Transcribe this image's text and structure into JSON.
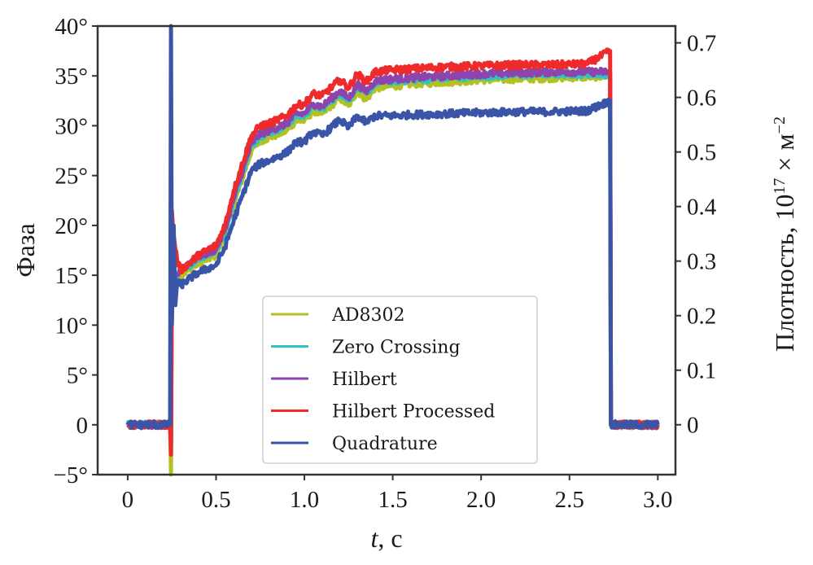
{
  "chart_data": {
    "type": "line",
    "title": "",
    "xlabel": "t, с",
    "xlabel_italic_part": "t",
    "xlabel_rest": ", с",
    "ylabel": "Фаза",
    "ylabel_right": "Плотность, 10^17 × м^-2",
    "ylabel_right_parts": {
      "base": "Плотность, 10",
      "exp": "17",
      "mid": " × м",
      "exp2": "−2"
    },
    "xlim": [
      -0.17,
      3.1
    ],
    "ylim": [
      -5,
      40
    ],
    "ylim_right": [
      -0.0914,
      0.7308
    ],
    "x_ticks": [
      0,
      0.5,
      1.0,
      1.5,
      2.0,
      2.5,
      3.0
    ],
    "x_tick_labels": [
      "0",
      "0.5",
      "1.0",
      "1.5",
      "2.0",
      "2.5",
      "3.0"
    ],
    "y_ticks": [
      -5,
      0,
      5,
      10,
      15,
      20,
      25,
      30,
      35,
      40
    ],
    "y_tick_labels": [
      "−5°",
      "0",
      "5°",
      "10°",
      "15°",
      "20°",
      "25°",
      "30°",
      "35°",
      "40°"
    ],
    "y_right_ticks": [
      0,
      0.1,
      0.2,
      0.3,
      0.4,
      0.5,
      0.6,
      0.7
    ],
    "y_right_tick_labels": [
      "0",
      "0.1",
      "0.2",
      "0.3",
      "0.4",
      "0.5",
      "0.6",
      "0.7"
    ],
    "grid": false,
    "legend_position": "lower-center",
    "noise_amplitude_deg": 0.35,
    "series": [
      {
        "name": "AD8302",
        "color": "#b5c123",
        "x": [
          0,
          0.24,
          0.245,
          0.25,
          0.28,
          0.3,
          0.4,
          0.5,
          0.55,
          0.6,
          0.7,
          0.75,
          0.8,
          0.9,
          0.95,
          1.0,
          1.05,
          1.1,
          1.15,
          1.2,
          1.25,
          1.3,
          1.35,
          1.4,
          1.5,
          1.6,
          1.8,
          2.0,
          2.2,
          2.4,
          2.6,
          2.73,
          2.735,
          2.75,
          3.0
        ],
        "y": [
          0,
          0,
          -5,
          14,
          14.3,
          15,
          16.2,
          17,
          19,
          22,
          27.5,
          28.5,
          28.8,
          29.5,
          30.5,
          30.5,
          31.5,
          31.2,
          32,
          32.8,
          32,
          33.5,
          32.6,
          33.8,
          34,
          34.2,
          34.4,
          34.6,
          34.7,
          34.8,
          34.9,
          35,
          0,
          0,
          0
        ]
      },
      {
        "name": "Zero Crossing",
        "color": "#2ec4c4",
        "x": [
          0,
          0.24,
          0.245,
          0.25,
          0.28,
          0.3,
          0.4,
          0.5,
          0.55,
          0.6,
          0.7,
          0.75,
          0.8,
          0.9,
          0.95,
          1.0,
          1.05,
          1.1,
          1.15,
          1.2,
          1.25,
          1.3,
          1.35,
          1.4,
          1.5,
          1.6,
          1.8,
          2.0,
          2.2,
          2.4,
          2.6,
          2.73,
          2.735,
          2.75,
          3.0
        ],
        "y": [
          0,
          0,
          -2,
          14.4,
          14.8,
          15.4,
          16.7,
          17.4,
          19.4,
          22.5,
          28,
          29,
          29.3,
          30,
          31,
          31,
          32,
          31.7,
          32.5,
          33.3,
          32.5,
          34,
          33.2,
          34.3,
          34.5,
          34.6,
          34.8,
          35,
          35.1,
          35.2,
          35.2,
          35.2,
          0,
          0,
          0
        ]
      },
      {
        "name": "Hilbert",
        "color": "#8e44ad",
        "x": [
          0,
          0.24,
          0.245,
          0.25,
          0.28,
          0.3,
          0.4,
          0.5,
          0.55,
          0.6,
          0.7,
          0.75,
          0.8,
          0.9,
          0.95,
          1.0,
          1.05,
          1.1,
          1.15,
          1.2,
          1.25,
          1.3,
          1.35,
          1.4,
          1.5,
          1.6,
          1.8,
          2.0,
          2.2,
          2.4,
          2.6,
          2.73,
          2.735,
          2.75,
          3.0
        ],
        "y": [
          0,
          0,
          -2,
          14.6,
          15,
          15.6,
          16.9,
          17.6,
          19.6,
          22.7,
          28.2,
          29.2,
          29.5,
          30.2,
          31.2,
          31.2,
          32.2,
          31.9,
          32.7,
          33.5,
          32.7,
          34.2,
          33.4,
          34.5,
          34.7,
          34.8,
          35,
          35.2,
          35.3,
          35.4,
          35.4,
          35.4,
          0,
          0,
          0
        ]
      },
      {
        "name": "Hilbert Processed",
        "color": "#ee2a2a",
        "x": [
          0,
          0.24,
          0.245,
          0.25,
          0.26,
          0.28,
          0.3,
          0.4,
          0.5,
          0.55,
          0.6,
          0.7,
          0.75,
          0.8,
          0.9,
          0.95,
          1.0,
          1.05,
          1.1,
          1.15,
          1.2,
          1.25,
          1.3,
          1.35,
          1.4,
          1.5,
          1.6,
          1.8,
          2.0,
          2.2,
          2.4,
          2.6,
          2.73,
          2.735,
          2.75,
          3.0
        ],
        "y": [
          0,
          0,
          -3,
          21.5,
          19,
          16.5,
          15.5,
          17,
          18,
          20,
          23.5,
          29,
          30,
          30.2,
          31,
          32,
          32.2,
          33.2,
          33,
          33.8,
          34.6,
          33.8,
          35.2,
          34.4,
          35.4,
          35.6,
          35.7,
          35.9,
          36,
          36.1,
          36.1,
          36.2,
          37.5,
          0,
          0,
          0
        ]
      },
      {
        "name": "Quadrature",
        "color": "#3a54a8",
        "x": [
          0,
          0.24,
          0.245,
          0.25,
          0.26,
          0.27,
          0.28,
          0.3,
          0.4,
          0.5,
          0.55,
          0.6,
          0.7,
          0.75,
          0.8,
          0.9,
          0.95,
          1.0,
          1.05,
          1.1,
          1.15,
          1.2,
          1.25,
          1.3,
          1.35,
          1.4,
          1.5,
          1.6,
          1.8,
          2.0,
          2.2,
          2.4,
          2.6,
          2.73,
          2.735,
          2.75,
          3.0
        ],
        "y": [
          0,
          0,
          40,
          10,
          20,
          12,
          14.5,
          14,
          15.3,
          16,
          17.8,
          20.5,
          25.5,
          26.2,
          26.5,
          27.3,
          28.3,
          28.4,
          29.4,
          29,
          29.8,
          30.6,
          29.8,
          31,
          30.3,
          31,
          31,
          31.1,
          31.2,
          31.3,
          31.4,
          31.4,
          31.5,
          32.5,
          0,
          0,
          0
        ]
      }
    ]
  },
  "legend": {
    "items": [
      {
        "label": "AD8302",
        "color": "#b5c123"
      },
      {
        "label": "Zero Crossing",
        "color": "#2ec4c4"
      },
      {
        "label": "Hilbert",
        "color": "#8e44ad"
      },
      {
        "label": "Hilbert Processed",
        "color": "#ee2a2a"
      },
      {
        "label": "Quadrature",
        "color": "#3a54a8"
      }
    ]
  },
  "colors": {
    "axis": "#333333",
    "legend_border": "#cfcfcf"
  }
}
